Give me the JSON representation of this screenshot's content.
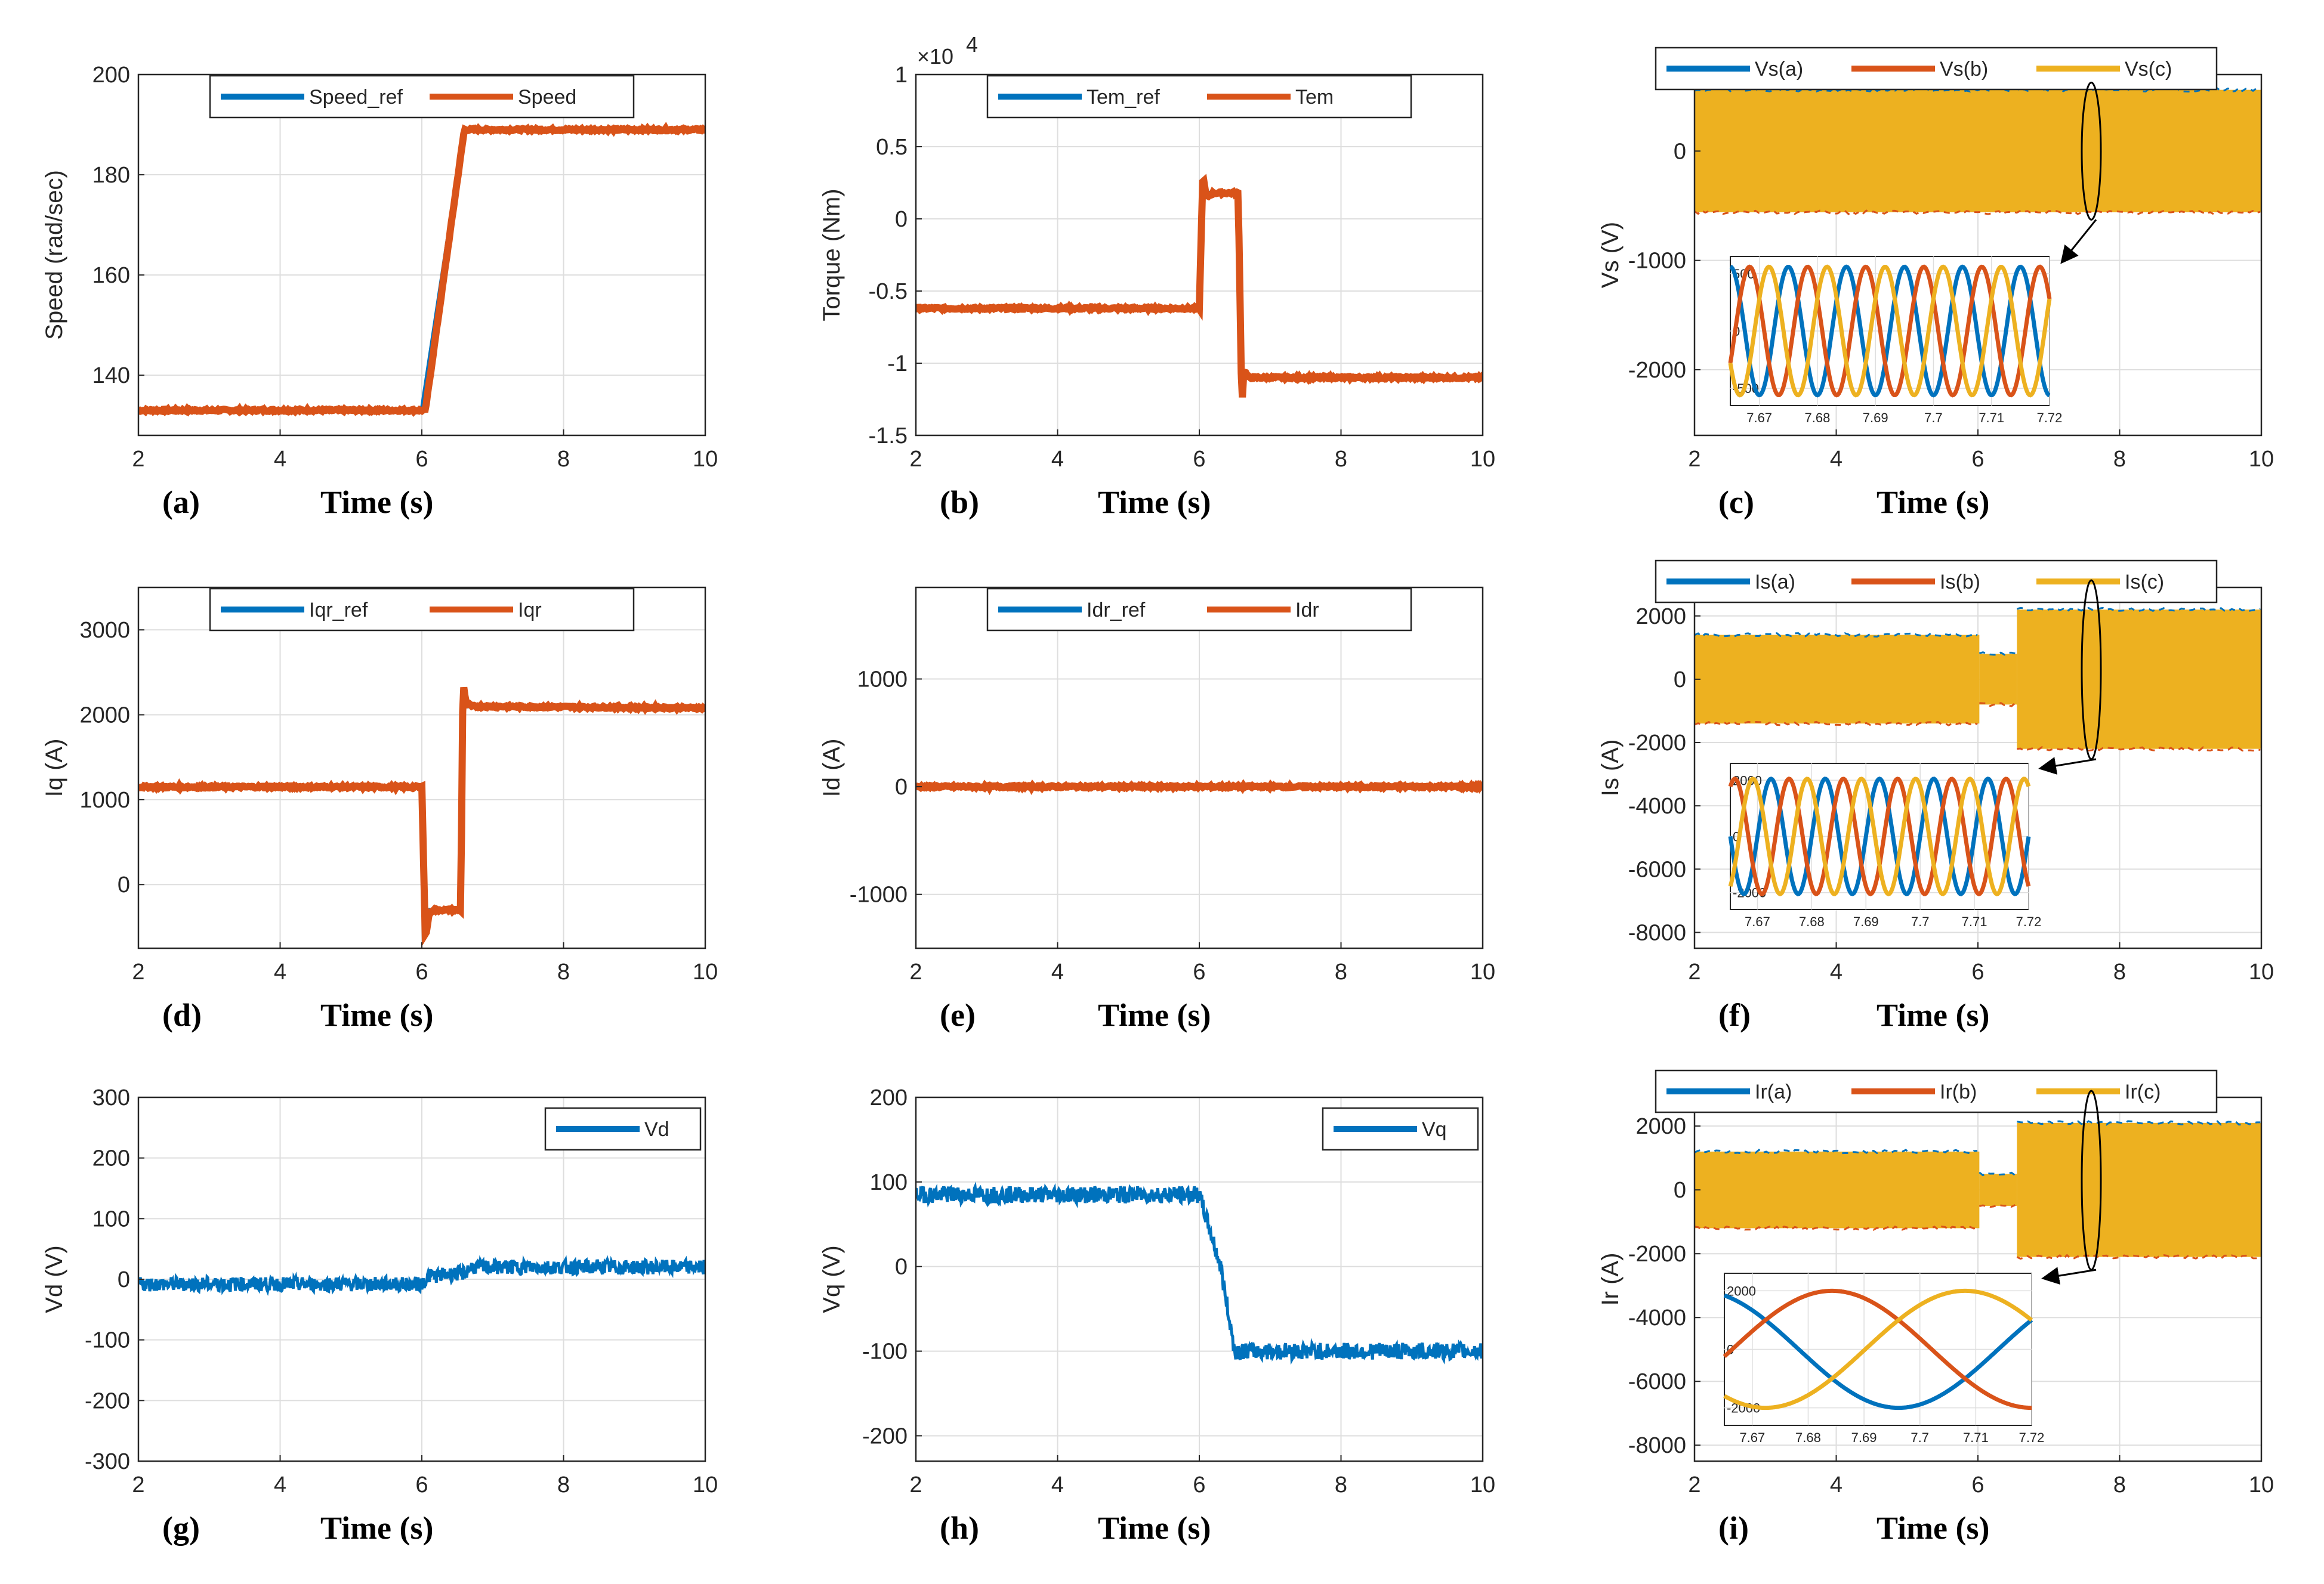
{
  "colors": {
    "blue": "#0072BD",
    "red": "#D95319",
    "yellow": "#EDB120",
    "grid": "#DEDEDE",
    "axis": "#262626"
  },
  "chart_data": [
    {
      "id": "a",
      "type": "line",
      "panel_label": "(a)",
      "xlabel": "Time (s)",
      "ylabel": "Speed (rad/sec)",
      "xlim": [
        2,
        10
      ],
      "ylim": [
        128,
        200
      ],
      "xticks": [
        2,
        4,
        6,
        8,
        10
      ],
      "yticks": [
        140,
        160,
        180,
        200
      ],
      "grid": true,
      "legend": "top",
      "series": [
        {
          "name": "Speed_ref",
          "color": "blue",
          "x": [
            2,
            6,
            6.6,
            10
          ],
          "y": [
            133,
            133,
            189,
            189
          ]
        },
        {
          "name": "Speed",
          "color": "red",
          "x": [
            2,
            6.05,
            6.6,
            10
          ],
          "y": [
            133,
            133,
            189,
            189
          ]
        }
      ]
    },
    {
      "id": "b",
      "type": "line",
      "panel_label": "(b)",
      "xlabel": "Time (s)",
      "ylabel": "Torque (Nm)",
      "exponent": "×10",
      "exponent_power": "4",
      "xlim": [
        2,
        10
      ],
      "ylim": [
        -1.5,
        1
      ],
      "xticks": [
        2,
        4,
        6,
        8,
        10
      ],
      "yticks": [
        -1.5,
        -1,
        -0.5,
        0,
        0.5,
        1
      ],
      "grid": true,
      "legend": "top",
      "series": [
        {
          "name": "Tem_ref",
          "color": "blue",
          "x": [
            2,
            6,
            6.02,
            6.55,
            6.57,
            10
          ],
          "y": [
            -0.62,
            -0.62,
            0.18,
            0.18,
            -1.1,
            -1.1
          ]
        },
        {
          "name": "Tem",
          "color": "red",
          "x": [
            2,
            6,
            6.05,
            6.1,
            6.2,
            6.55,
            6.6,
            6.63,
            6.7,
            10
          ],
          "y": [
            -0.62,
            -0.62,
            0.3,
            0.15,
            0.18,
            0.18,
            -1.3,
            -1.05,
            -1.1,
            -1.1
          ]
        }
      ]
    },
    {
      "id": "c",
      "type": "line",
      "panel_label": "(c)",
      "xlabel": "Time (s)",
      "ylabel": "Vs (V)",
      "xlim": [
        2,
        10
      ],
      "ylim": [
        -2600,
        700
      ],
      "xticks": [
        2,
        4,
        6,
        8,
        10
      ],
      "yticks": [
        -2000,
        -1000,
        0
      ],
      "grid": true,
      "legend": "top",
      "series": [
        {
          "name": "Vs(a)",
          "color": "blue"
        },
        {
          "name": "Vs(b)",
          "color": "red"
        },
        {
          "name": "Vs(c)",
          "color": "yellow"
        }
      ],
      "band": [
        {
          "x0": 2,
          "x1": 10,
          "amp": 560
        }
      ],
      "inset": {
        "xlim": [
          7.665,
          7.72
        ],
        "xticks": [
          "7.67",
          "7.68",
          "7.69",
          "7.7",
          "7.71",
          "7.72"
        ],
        "ylim": [
          -650,
          650
        ],
        "yticks": [
          -500,
          0,
          500
        ],
        "amp": 560,
        "freq": 100,
        "phase0": 0
      }
    },
    {
      "id": "d",
      "type": "line",
      "panel_label": "(d)",
      "xlabel": "Time (s)",
      "ylabel": "Iq (A)",
      "xlim": [
        2,
        10
      ],
      "ylim": [
        -750,
        3500
      ],
      "xticks": [
        2,
        4,
        6,
        8,
        10
      ],
      "yticks": [
        0,
        1000,
        2000,
        3000
      ],
      "grid": true,
      "legend": "top",
      "series": [
        {
          "name": "Iqr_ref",
          "color": "blue",
          "x": [
            2,
            6,
            6.02,
            6.55,
            6.57,
            10
          ],
          "y": [
            1150,
            1150,
            -300,
            -300,
            2100,
            2100
          ]
        },
        {
          "name": "Iqr",
          "color": "red",
          "x": [
            2,
            6,
            6.05,
            6.1,
            6.15,
            6.55,
            6.58,
            6.62,
            6.7,
            10
          ],
          "y": [
            1150,
            1150,
            -650,
            -350,
            -300,
            -300,
            2400,
            2150,
            2100,
            2080
          ]
        }
      ]
    },
    {
      "id": "e",
      "type": "line",
      "panel_label": "(e)",
      "xlabel": "Time (s)",
      "ylabel": "Id (A)",
      "xlim": [
        2,
        10
      ],
      "ylim": [
        -1500,
        1850
      ],
      "xticks": [
        2,
        4,
        6,
        8,
        10
      ],
      "yticks": [
        -1000,
        0,
        1000
      ],
      "grid": true,
      "legend": "top",
      "series": [
        {
          "name": "Idr_ref",
          "color": "blue",
          "x": [
            2,
            10
          ],
          "y": [
            0,
            0
          ]
        },
        {
          "name": "Idr",
          "color": "red",
          "x": [
            2,
            10
          ],
          "y": [
            0,
            0
          ]
        }
      ]
    },
    {
      "id": "f",
      "type": "line",
      "panel_label": "(f)",
      "xlabel": "Time (s)",
      "ylabel": "Is (A)",
      "xlim": [
        2,
        10
      ],
      "ylim": [
        -8500,
        2900
      ],
      "xticks": [
        2,
        4,
        6,
        8,
        10
      ],
      "yticks": [
        -8000,
        -6000,
        -4000,
        -2000,
        0,
        2000
      ],
      "grid": true,
      "legend": "top",
      "series": [
        {
          "name": "Is(a)",
          "color": "blue"
        },
        {
          "name": "Is(b)",
          "color": "red"
        },
        {
          "name": "Is(c)",
          "color": "yellow"
        }
      ],
      "band": [
        {
          "x0": 2,
          "x1": 6.02,
          "amp": 1400
        },
        {
          "x0": 6.02,
          "x1": 6.55,
          "amp": 800
        },
        {
          "x0": 6.55,
          "x1": 10,
          "amp": 2200
        }
      ],
      "inset": {
        "xlim": [
          7.665,
          7.72
        ],
        "xticks": [
          "7.67",
          "7.68",
          "7.69",
          "7.7",
          "7.71",
          "7.72"
        ],
        "ylim": [
          -2600,
          2600
        ],
        "yticks": [
          -2000,
          0,
          2000
        ],
        "amp": 2050,
        "freq": 100,
        "phase0": 1.57
      }
    },
    {
      "id": "g",
      "type": "line",
      "panel_label": "(g)",
      "xlabel": "Time (s)",
      "ylabel": "Vd (V)",
      "xlim": [
        2,
        10
      ],
      "ylim": [
        -300,
        300
      ],
      "xticks": [
        2,
        4,
        6,
        8,
        10
      ],
      "yticks": [
        -300,
        -200,
        -100,
        0,
        100,
        200,
        300
      ],
      "grid": true,
      "legend": "top-right",
      "series": [
        {
          "name": "Vd",
          "color": "blue",
          "x": [
            2,
            6,
            6.1,
            6.6,
            6.7,
            10
          ],
          "y": [
            -8,
            -8,
            5,
            10,
            20,
            20
          ],
          "noise": 12
        }
      ]
    },
    {
      "id": "h",
      "type": "line",
      "panel_label": "(h)",
      "xlabel": "Time (s)",
      "ylabel": "Vq (V)",
      "xlim": [
        2,
        10
      ],
      "ylim": [
        -230,
        200
      ],
      "xticks": [
        2,
        4,
        6,
        8,
        10
      ],
      "yticks": [
        -200,
        -100,
        0,
        100,
        200
      ],
      "grid": true,
      "legend": "top-right",
      "series": [
        {
          "name": "Vq",
          "color": "blue",
          "x": [
            2,
            6,
            6.3,
            6.5,
            10
          ],
          "y": [
            85,
            85,
            0,
            -100,
            -100
          ],
          "noise": 10
        }
      ]
    },
    {
      "id": "i",
      "type": "line",
      "panel_label": "(i)",
      "xlabel": "Time (s)",
      "ylabel": "Ir (A)",
      "xlim": [
        2,
        10
      ],
      "ylim": [
        -8500,
        2900
      ],
      "xticks": [
        2,
        4,
        6,
        8,
        10
      ],
      "yticks": [
        -8000,
        -6000,
        -4000,
        -2000,
        0,
        2000
      ],
      "grid": true,
      "legend": "top",
      "series": [
        {
          "name": "Ir(a)",
          "color": "blue"
        },
        {
          "name": "Ir(b)",
          "color": "red"
        },
        {
          "name": "Ir(c)",
          "color": "yellow"
        }
      ],
      "band": [
        {
          "x0": 2,
          "x1": 6.02,
          "amp": 1200
        },
        {
          "x0": 6.02,
          "x1": 6.55,
          "amp": 500
        },
        {
          "x0": 6.55,
          "x1": 10,
          "amp": 2100
        }
      ],
      "inset": {
        "xlim": [
          7.665,
          7.72
        ],
        "xticks": [
          "7.67",
          "7.68",
          "7.69",
          "7.7",
          "7.71",
          "7.72"
        ],
        "ylim": [
          -2600,
          2600
        ],
        "yticks": [
          -2000,
          0,
          2000
        ],
        "amp": 2000,
        "freq": 14,
        "phase0": 0.4
      }
    }
  ]
}
